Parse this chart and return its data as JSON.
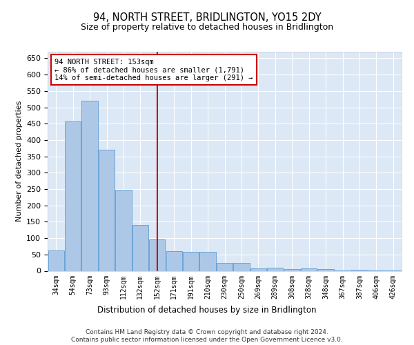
{
  "title": "94, NORTH STREET, BRIDLINGTON, YO15 2DY",
  "subtitle": "Size of property relative to detached houses in Bridlington",
  "xlabel": "Distribution of detached houses by size in Bridlington",
  "ylabel": "Number of detached properties",
  "bar_labels": [
    "34sqm",
    "54sqm",
    "73sqm",
    "93sqm",
    "112sqm",
    "132sqm",
    "152sqm",
    "171sqm",
    "191sqm",
    "210sqm",
    "230sqm",
    "250sqm",
    "269sqm",
    "289sqm",
    "308sqm",
    "328sqm",
    "348sqm",
    "367sqm",
    "387sqm",
    "406sqm",
    "426sqm"
  ],
  "bar_values": [
    62,
    457,
    520,
    370,
    248,
    140,
    95,
    60,
    58,
    57,
    25,
    24,
    8,
    10,
    5,
    7,
    5,
    2,
    4,
    2,
    2
  ],
  "bar_color": "#adc8e6",
  "bar_edge_color": "#5b9bd5",
  "vline_x_index": 6,
  "vline_color": "#cc0000",
  "annotation_line1": "94 NORTH STREET: 153sqm",
  "annotation_line2": "← 86% of detached houses are smaller (1,791)",
  "annotation_line3": "14% of semi-detached houses are larger (291) →",
  "annotation_box_edge": "#cc0000",
  "ylim": [
    0,
    670
  ],
  "yticks": [
    0,
    50,
    100,
    150,
    200,
    250,
    300,
    350,
    400,
    450,
    500,
    550,
    600,
    650
  ],
  "background_color": "#dce8f5",
  "grid_color": "#ffffff",
  "footer_line1": "Contains HM Land Registry data © Crown copyright and database right 2024.",
  "footer_line2": "Contains public sector information licensed under the Open Government Licence v3.0.",
  "title_fontsize": 10.5,
  "subtitle_fontsize": 9,
  "bar_label_fontsize": 7,
  "ylabel_fontsize": 8,
  "xlabel_fontsize": 8.5,
  "ytick_fontsize": 8,
  "footer_fontsize": 6.5
}
